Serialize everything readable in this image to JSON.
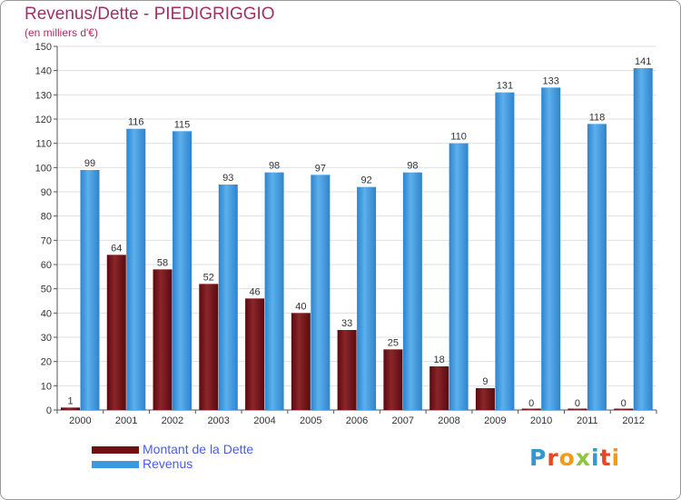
{
  "title": "Revenus/Dette - PIEDIGRIGGIO",
  "subtitle": "(en milliers d'€)",
  "logo": {
    "text": "Proxiti",
    "letters": [
      {
        "ch": "P",
        "color": "#2e9ad0"
      },
      {
        "ch": "r",
        "color": "#e8461e"
      },
      {
        "ch": "o",
        "color": "#f39c12"
      },
      {
        "ch": "x",
        "color": "#8cc63f"
      },
      {
        "ch": "i",
        "color": "#2e9ad0"
      },
      {
        "ch": "t",
        "color": "#e8461e"
      },
      {
        "ch": "i",
        "color": "#f39c12"
      }
    ]
  },
  "legend": [
    {
      "label": "Montant de la Dette",
      "color": "#6e1014"
    },
    {
      "label": "Revenus",
      "color": "#3f97dc"
    }
  ],
  "chart_data": {
    "type": "bar",
    "title": "Revenus/Dette - PIEDIGRIGGIO",
    "subtitle": "(en milliers d'€)",
    "xlabel": "",
    "ylabel": "",
    "categories": [
      "2000",
      "2001",
      "2002",
      "2003",
      "2004",
      "2005",
      "2006",
      "2007",
      "2008",
      "2009",
      "2010",
      "2011",
      "2012"
    ],
    "series": [
      {
        "name": "Montant de la Dette",
        "color": "#6e1014",
        "values": [
          1,
          64,
          58,
          52,
          46,
          40,
          33,
          25,
          18,
          9,
          0,
          0,
          0
        ]
      },
      {
        "name": "Revenus",
        "color": "#3f97dc",
        "values": [
          99,
          116,
          115,
          93,
          98,
          97,
          92,
          98,
          110,
          131,
          133,
          118,
          141
        ]
      }
    ],
    "ylim": [
      0,
      150
    ],
    "yticks": [
      0,
      10,
      20,
      30,
      40,
      50,
      60,
      70,
      80,
      90,
      100,
      110,
      120,
      130,
      140,
      150
    ],
    "grid": true,
    "legend_position": "bottom-left"
  }
}
